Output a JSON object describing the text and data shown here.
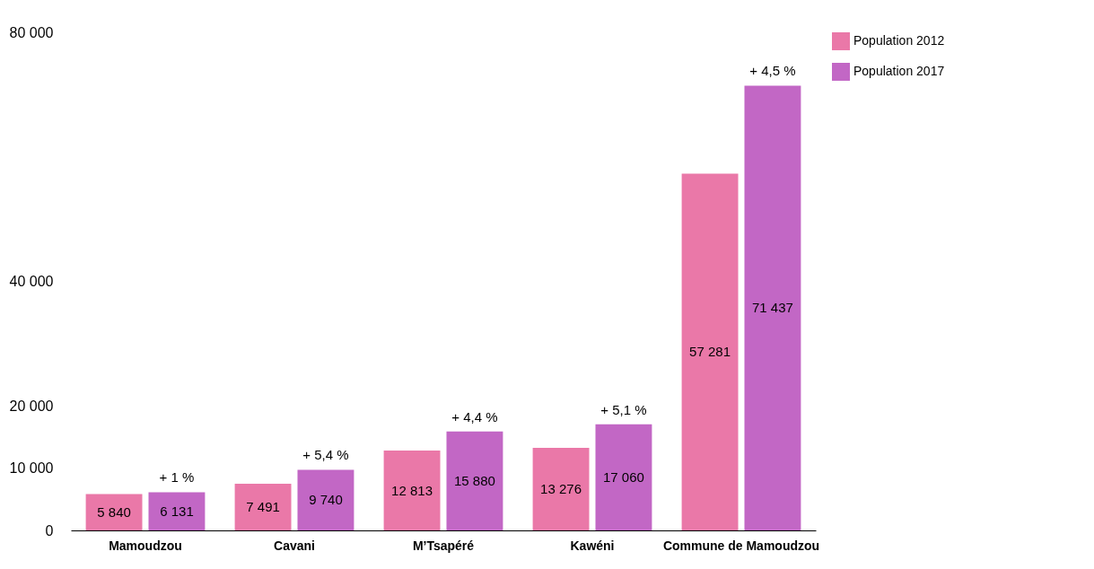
{
  "chart_data": {
    "type": "bar",
    "categories": [
      "Mamoudzou",
      "Cavani",
      "M’Tsapéré",
      "Kawéni",
      "Commune de Mamoudzou"
    ],
    "series": [
      {
        "name": "Population 2012",
        "color": "#ea78a8",
        "values": [
          5840,
          7491,
          12813,
          13276,
          57281
        ],
        "value_labels": [
          "5 840",
          "7 491",
          "12 813",
          "13 276",
          "57 281"
        ]
      },
      {
        "name": "Population 2017",
        "color": "#c267c5",
        "values": [
          6131,
          9740,
          15880,
          17060,
          71437
        ],
        "value_labels": [
          "6 131",
          "9 740",
          "15 880",
          "17 060",
          "71 437"
        ]
      }
    ],
    "ylim": [
      0,
      80000
    ],
    "yticks": [
      0,
      {
        "value": 10000,
        "label": "10 000"
      },
      {
        "value": 20000,
        "label": "20 000"
      },
      {
        "value": 40000,
        "label": "40 000"
      },
      {
        "value": 80000,
        "label": "80 000"
      }
    ],
    "annotations": [
      {
        "text": "+ 1 %",
        "x": "Mamoudzou",
        "y": 6131
      },
      {
        "text": "+ 5,4 %",
        "x": "Cavani",
        "y": 9740
      },
      {
        "text": "+ 4,4 %",
        "x": "M’Tsapéré",
        "y": 15880
      },
      {
        "text": "+ 5,1 %",
        "x": "Kawéni",
        "y": 17060
      },
      {
        "text": "+ 4,5 %",
        "x": "Commune de Mamoudzou",
        "y": 71437
      }
    ],
    "grid": false,
    "legend": "right"
  }
}
